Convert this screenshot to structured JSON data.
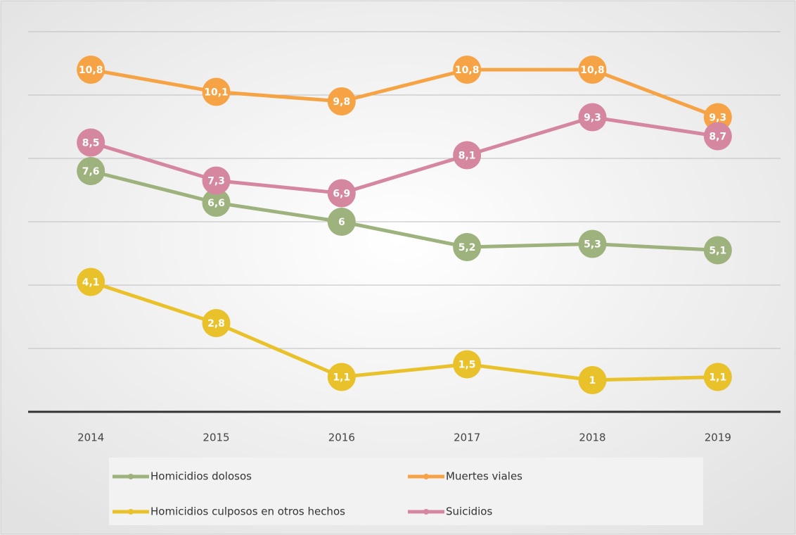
{
  "chart_data": {
    "type": "line",
    "categories": [
      "2014",
      "2015",
      "2016",
      "2017",
      "2018",
      "2019"
    ],
    "series": [
      {
        "name": "Homicidios dolosos",
        "color": "#9db27c",
        "values": [
          7.6,
          6.6,
          6,
          5.2,
          5.3,
          5.1
        ],
        "value_labels": [
          "7,6",
          "6,6",
          "6",
          "5,2",
          "5,3",
          "5,1"
        ]
      },
      {
        "name": "Muertes viales",
        "color": "#f5a345",
        "values": [
          10.8,
          10.1,
          9.8,
          10.8,
          10.8,
          9.3
        ],
        "value_labels": [
          "10,8",
          "10,1",
          "9,8",
          "10,8",
          "10,8",
          "9,3"
        ]
      },
      {
        "name": "Homicidios culposos en otros hechos",
        "color": "#e9c12a",
        "values": [
          4.1,
          2.8,
          1.1,
          1.5,
          1,
          1.1
        ],
        "value_labels": [
          "4,1",
          "2,8",
          "1,1",
          "1,5",
          "1",
          "1,1"
        ]
      },
      {
        "name": "Suicidios",
        "color": "#d4879f",
        "values": [
          8.5,
          7.3,
          6.9,
          8.1,
          9.3,
          8.7
        ],
        "value_labels": [
          "8,5",
          "7,3",
          "6,9",
          "8,1",
          "9,3",
          "8,7"
        ]
      }
    ],
    "ylim": [
      0,
      12
    ],
    "yticks": [
      0,
      2,
      4,
      6,
      8,
      10,
      12
    ],
    "grid": true,
    "legend": "bottom"
  }
}
